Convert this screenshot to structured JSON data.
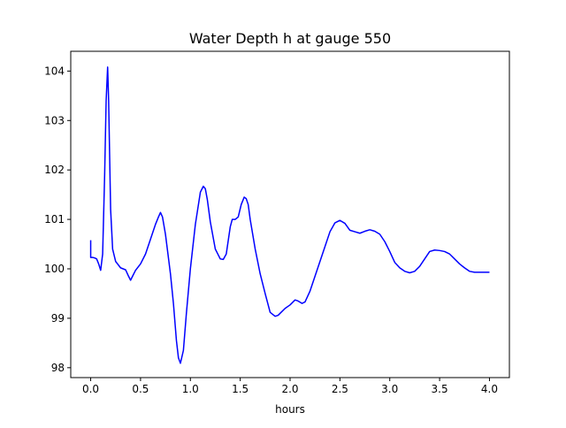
{
  "chart_data": {
    "type": "line",
    "title": "Water Depth h at gauge 550",
    "xlabel": "hours",
    "ylabel": "",
    "xlim": [
      -0.2,
      4.2
    ],
    "ylim": [
      97.8,
      104.4
    ],
    "xticks": [
      0.0,
      0.5,
      1.0,
      1.5,
      2.0,
      2.5,
      3.0,
      3.5,
      4.0
    ],
    "xtick_labels": [
      "0.0",
      "0.5",
      "1.0",
      "1.5",
      "2.0",
      "2.5",
      "3.0",
      "3.5",
      "4.0"
    ],
    "yticks": [
      98,
      99,
      100,
      101,
      102,
      103,
      104
    ],
    "ytick_labels": [
      "98",
      "99",
      "100",
      "101",
      "102",
      "103",
      "104"
    ],
    "grid": false,
    "legend": "none",
    "series": [
      {
        "color": "#0000ff",
        "x": [
          0.0,
          0.0,
          0.02,
          0.04,
          0.06,
          0.08,
          0.1,
          0.12,
          0.14,
          0.155,
          0.17,
          0.18,
          0.19,
          0.2,
          0.22,
          0.25,
          0.3,
          0.35,
          0.38,
          0.4,
          0.42,
          0.45,
          0.5,
          0.55,
          0.6,
          0.65,
          0.68,
          0.7,
          0.72,
          0.75,
          0.8,
          0.83,
          0.86,
          0.88,
          0.9,
          0.93,
          0.96,
          1.0,
          1.05,
          1.1,
          1.13,
          1.15,
          1.17,
          1.2,
          1.25,
          1.3,
          1.33,
          1.36,
          1.4,
          1.42,
          1.45,
          1.48,
          1.51,
          1.54,
          1.56,
          1.58,
          1.6,
          1.65,
          1.7,
          1.75,
          1.8,
          1.85,
          1.88,
          1.9,
          1.95,
          2.0,
          2.05,
          2.08,
          2.12,
          2.15,
          2.2,
          2.25,
          2.3,
          2.35,
          2.4,
          2.45,
          2.5,
          2.55,
          2.6,
          2.65,
          2.7,
          2.75,
          2.8,
          2.85,
          2.9,
          2.95,
          3.0,
          3.05,
          3.1,
          3.15,
          3.2,
          3.25,
          3.3,
          3.35,
          3.4,
          3.45,
          3.5,
          3.55,
          3.6,
          3.65,
          3.7,
          3.75,
          3.8,
          3.85,
          3.9,
          3.95,
          4.0
        ],
        "y": [
          100.58,
          100.23,
          100.23,
          100.22,
          100.2,
          100.1,
          99.97,
          100.3,
          101.9,
          103.4,
          104.08,
          103.4,
          102.3,
          101.2,
          100.4,
          100.15,
          100.02,
          99.98,
          99.85,
          99.77,
          99.85,
          99.97,
          100.1,
          100.3,
          100.6,
          100.9,
          101.05,
          101.14,
          101.05,
          100.7,
          99.9,
          99.3,
          98.55,
          98.2,
          98.09,
          98.35,
          99.1,
          100.0,
          100.9,
          101.55,
          101.67,
          101.62,
          101.4,
          100.95,
          100.4,
          100.2,
          100.19,
          100.3,
          100.85,
          101.0,
          101.0,
          101.05,
          101.3,
          101.45,
          101.42,
          101.3,
          101.0,
          100.4,
          99.9,
          99.5,
          99.12,
          99.04,
          99.06,
          99.1,
          99.2,
          99.27,
          99.37,
          99.35,
          99.3,
          99.33,
          99.55,
          99.85,
          100.15,
          100.45,
          100.75,
          100.93,
          100.98,
          100.92,
          100.78,
          100.75,
          100.72,
          100.76,
          100.79,
          100.76,
          100.7,
          100.55,
          100.35,
          100.13,
          100.02,
          99.95,
          99.92,
          99.95,
          100.05,
          100.2,
          100.35,
          100.38,
          100.37,
          100.35,
          100.3,
          100.2,
          100.1,
          100.02,
          99.95,
          99.93,
          99.93,
          99.93,
          99.93
        ]
      }
    ]
  }
}
